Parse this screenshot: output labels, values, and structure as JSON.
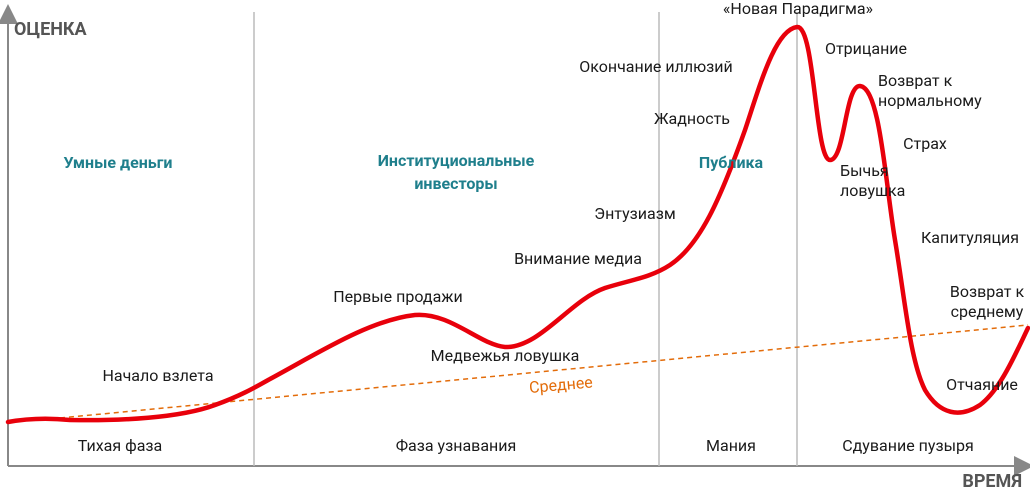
{
  "axes": {
    "y_label": "ОЦЕНКА",
    "x_label": "ВРЕМЯ"
  },
  "phases": [
    "Тихая фаза",
    "Фаза узнавания",
    "Мания",
    "Сдувание пузыря"
  ],
  "participants": [
    [
      "Умные деньги"
    ],
    [
      "Институциональные",
      "инвесторы"
    ],
    [
      "Публика"
    ]
  ],
  "average_label": "Среднее",
  "annotations": [
    [
      "«Новая Парадигма»"
    ],
    [
      "Окончание иллюзий"
    ],
    [
      "Жадность"
    ],
    [
      "Отрицание"
    ],
    [
      "Возврат к",
      "нормальному"
    ],
    [
      "Страх"
    ],
    [
      "Бычья",
      "ловушка"
    ],
    [
      "Капитуляция"
    ],
    [
      "Энтузиазм"
    ],
    [
      "Внимание медиа"
    ],
    [
      "Первые продажи"
    ],
    [
      "Медвежья ловушка"
    ],
    [
      "Начало взлета"
    ],
    [
      "Возврат к",
      "среднему"
    ],
    [
      "Отчаяние"
    ]
  ]
}
